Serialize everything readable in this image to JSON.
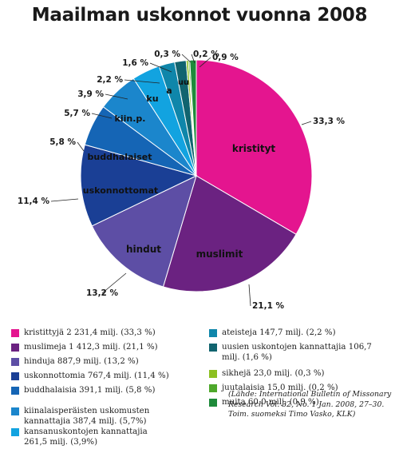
{
  "chart_data": {
    "type": "pie",
    "title": "Maailman uskonnot vuonna 2008",
    "slices": [
      {
        "key": "kristityt",
        "value": 33.3,
        "pct_label": "33,3 %",
        "inner_label": "kristityt",
        "color": "#e4158f",
        "legend": "kristittyjä 2 231,4 milj. (33,3 %)"
      },
      {
        "key": "muslimit",
        "value": 21.1,
        "pct_label": "21,1 %",
        "inner_label": "muslimit",
        "color": "#6b2281",
        "legend": "muslimeja 1 412,3 milj. (21,1 %)"
      },
      {
        "key": "hindut",
        "value": 13.2,
        "pct_label": "13,2 %",
        "inner_label": "hindut",
        "color": "#5d4ea5",
        "legend": "hinduja 887,9 milj. (13,2 %)"
      },
      {
        "key": "uskonnottomat",
        "value": 11.4,
        "pct_label": "11,4 %",
        "inner_label": "uskonnottomat",
        "color": "#1a3f95",
        "legend": "uskonnottomia 767,4 milj. (11,4 %)"
      },
      {
        "key": "buddhalaiset",
        "value": 5.8,
        "pct_label": "5,8 %",
        "inner_label": "buddhalaiset",
        "color": "#1565b5",
        "legend": "buddhalaisia 391,1 milj. (5,8 %)"
      },
      {
        "key": "kiin",
        "value": 5.7,
        "pct_label": "5,7 %",
        "inner_label": "kiin.p.",
        "color": "#1b86cc",
        "legend": "kiinalaisperäisten uskomusten kannattajia 387,4 milj. (5,7%)"
      },
      {
        "key": "ku",
        "value": 3.9,
        "pct_label": "3,9 %",
        "inner_label": "ku",
        "color": "#12a3e0",
        "legend": "kansanuskontojen kannattajia 261,5 milj. (3,9%)"
      },
      {
        "key": "a",
        "value": 2.2,
        "pct_label": "2,2 %",
        "inner_label": "a",
        "color": "#0f86aa",
        "legend": "ateisteja 147,7 milj. (2,2 %)"
      },
      {
        "key": "uu",
        "value": 1.6,
        "pct_label": "1,6 %",
        "inner_label": "uu",
        "color": "#11646f",
        "legend": "uusien uskontojen kannattajia 106,7 milj. (1,6 %)"
      },
      {
        "key": "sikhit",
        "value": 0.3,
        "pct_label": "0,3 %",
        "inner_label": "",
        "color": "#8cc021",
        "legend": "sikhejä 23,0 milj. (0,3 %)"
      },
      {
        "key": "juutalaiset",
        "value": 0.2,
        "pct_label": "0,2 %",
        "inner_label": "",
        "color": "#4ea82b",
        "legend": "juutalaisia 15,0 milj. (0,2 %)"
      },
      {
        "key": "muut",
        "value": 0.9,
        "pct_label": "0,9 %",
        "inner_label": "",
        "color": "#1e8a3a",
        "legend": "muita 60,0 milj. (0,9 %)."
      }
    ],
    "source_note": "(Lähde: International Bulletin of Missonary Research Vol. 32, No. 1 Jan. 2008, 27–30. Toim. suomeksi Timo Vasko, KLK)"
  }
}
